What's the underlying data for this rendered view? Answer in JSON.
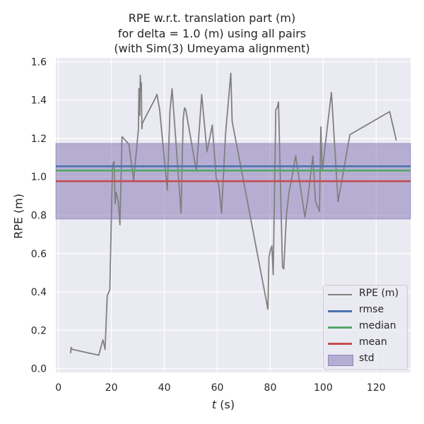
{
  "chart_data": {
    "type": "line",
    "title_lines": [
      "RPE w.r.t. translation part (m)",
      "for delta = 1.0 (m) using all pairs",
      "(with Sim(3) Umeyama alignment)"
    ],
    "xlabel_italic": "t",
    "xlabel_rest": " (s)",
    "ylabel": "RPE (m)",
    "xlim": [
      -1,
      133
    ],
    "ylim": [
      -0.02,
      1.62
    ],
    "xticks": [
      0,
      20,
      40,
      60,
      80,
      100,
      120
    ],
    "yticks": [
      0.0,
      0.2,
      0.4,
      0.6,
      0.8,
      1.0,
      1.2,
      1.4,
      1.6
    ],
    "grid": true,
    "legend_position": "lower-right",
    "colors": {
      "rpe": "#808080",
      "rmse": "#4c72b0",
      "median": "#55a868",
      "mean": "#c44e52",
      "std": "#8172b2",
      "plot_bg": "#eaeaf2",
      "grid": "#ffffff"
    },
    "series": [
      {
        "name": "RPE (m)",
        "x": [
          4.6,
          4.8,
          5.2,
          15.2,
          16.2,
          16.8,
          17.6,
          18.4,
          19.4,
          20.4,
          21.0,
          21.4,
          21.8,
          22.6,
          23.2,
          24.0,
          26.6,
          28.4,
          30.2,
          30.4,
          30.7,
          30.9,
          31.1,
          31.3,
          31.5,
          31.7,
          36.2,
          37.2,
          38.2,
          41.1,
          42.1,
          42.9,
          46.3,
          47.1,
          47.6,
          48.1,
          52.1,
          54.1,
          56.1,
          58.1,
          59.6,
          60.1,
          60.6,
          61.6,
          63.1,
          65.1,
          65.6,
          79.1,
          79.5,
          80.1,
          80.6,
          81.1,
          82.1,
          82.6,
          83.1,
          84.6,
          85.1,
          86.1,
          87.1,
          88.1,
          89.6,
          93.1,
          94.1,
          96.1,
          97.1,
          98.6,
          99.1,
          99.6,
          103.1,
          105.6,
          110.1,
          125.1,
          127.6
        ],
        "y": [
          0.08,
          0.11,
          0.1,
          0.07,
          0.12,
          0.15,
          0.1,
          0.38,
          0.41,
          1.06,
          1.08,
          0.86,
          0.92,
          0.87,
          0.75,
          1.21,
          1.17,
          0.98,
          1.25,
          1.46,
          1.32,
          1.53,
          1.45,
          1.49,
          1.25,
          1.28,
          1.4,
          1.43,
          1.35,
          0.93,
          1.34,
          1.46,
          0.81,
          1.3,
          1.36,
          1.35,
          1.03,
          1.43,
          1.13,
          1.27,
          0.99,
          0.98,
          0.95,
          0.81,
          1.22,
          1.54,
          1.29,
          0.31,
          0.58,
          0.62,
          0.64,
          0.49,
          1.35,
          1.36,
          1.39,
          0.53,
          0.52,
          0.8,
          0.92,
          0.99,
          1.11,
          0.79,
          0.88,
          1.11,
          0.87,
          0.82,
          1.26,
          1.03,
          1.44,
          0.87,
          1.22,
          1.34,
          1.19
        ]
      }
    ],
    "stats": {
      "rmse": {
        "name": "rmse",
        "value": 1.055
      },
      "median": {
        "name": "median",
        "value": 1.033
      },
      "mean": {
        "name": "mean",
        "value": 0.977
      },
      "std": {
        "name": "std",
        "low": 0.78,
        "high": 1.174
      }
    }
  }
}
